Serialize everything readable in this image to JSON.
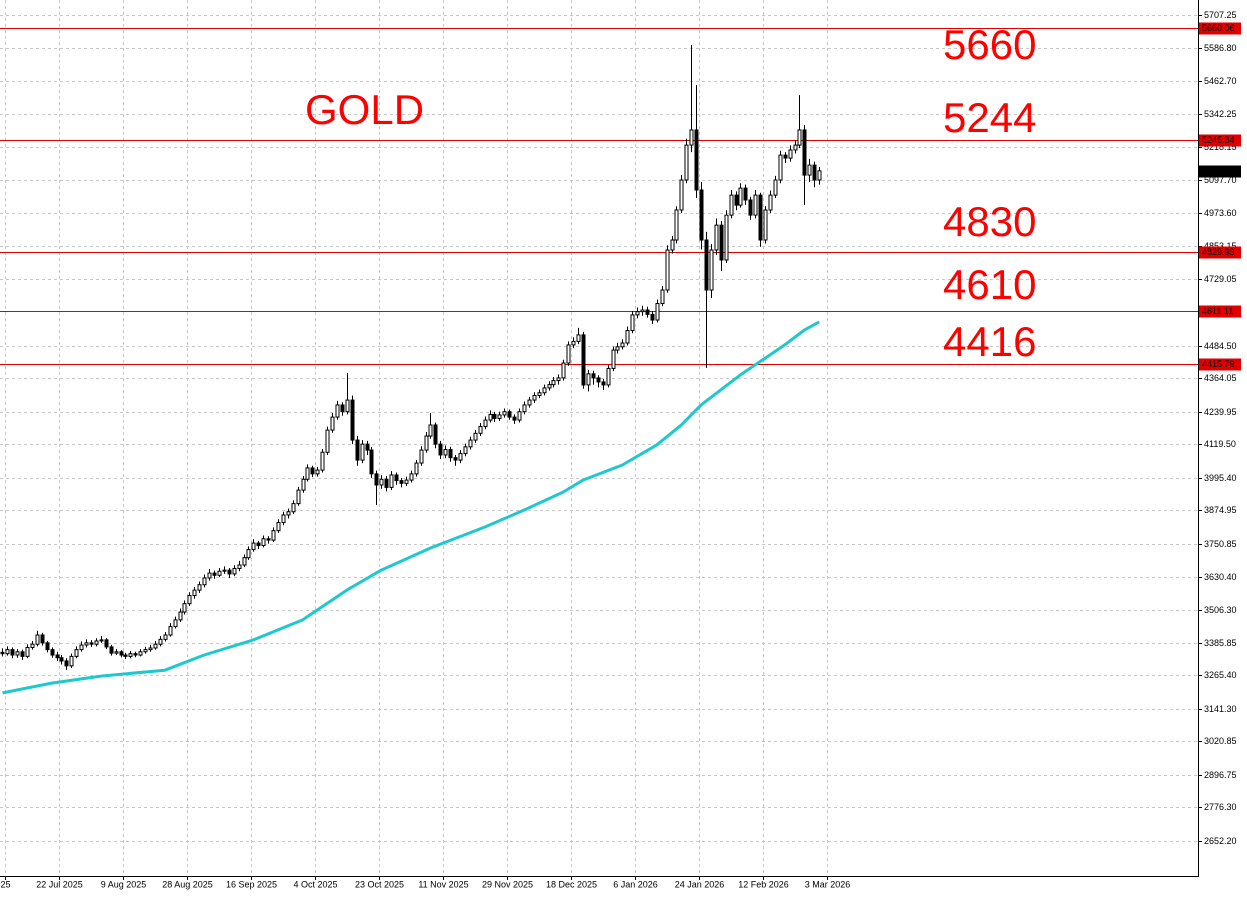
{
  "chart_data": {
    "type": "candlestick",
    "title": "GOLD",
    "annotations": [
      "5660",
      "5244",
      "4830",
      "4610",
      "4416"
    ],
    "xlim": [
      0,
      243.5
    ],
    "ylim": [
      2522.7,
      5762.7
    ],
    "grid": true,
    "up_color": "#ffffff",
    "down_color": "#000000",
    "annotation_color": "#ff0000",
    "xticks": [
      {
        "value": 1,
        "label": "25"
      },
      {
        "value": 12,
        "label": "22 Jul 2025"
      },
      {
        "value": 25,
        "label": "9 Aug 2025"
      },
      {
        "value": 38,
        "label": "28 Aug 2025"
      },
      {
        "value": 51,
        "label": "16 Sep 2025"
      },
      {
        "value": 64,
        "label": "4 Oct 2025"
      },
      {
        "value": 77,
        "label": "23 Oct 2025"
      },
      {
        "value": 90,
        "label": "11 Nov 2025"
      },
      {
        "value": 103,
        "label": "29 Nov 2025"
      },
      {
        "value": 116,
        "label": "18 Dec 2025"
      },
      {
        "value": 129,
        "label": "6 Jan 2026"
      },
      {
        "value": 142,
        "label": "24 Jan 2026"
      },
      {
        "value": 155,
        "label": "12 Feb 2026"
      },
      {
        "value": 168,
        "label": "3 Mar 2026"
      }
    ],
    "yticks": [
      {
        "value": 5707.25,
        "label": "5707.25"
      },
      {
        "value": 5586.8,
        "label": "5586.80"
      },
      {
        "value": 5462.7,
        "label": "5462.70"
      },
      {
        "value": 5342.25,
        "label": "5342.25"
      },
      {
        "value": 5218.15,
        "label": "5218.15"
      },
      {
        "value": 5097.7,
        "label": "5097.70"
      },
      {
        "value": 4973.6,
        "label": "4973.60"
      },
      {
        "value": 4853.15,
        "label": "4853.15"
      },
      {
        "value": 4729.05,
        "label": "4729.05"
      },
      {
        "value": 4484.5,
        "label": "4484.50"
      },
      {
        "value": 4364.05,
        "label": "4364.05"
      },
      {
        "value": 4239.95,
        "label": "4239.95"
      },
      {
        "value": 4119.5,
        "label": "4119.50"
      },
      {
        "value": 3995.4,
        "label": "3995.40"
      },
      {
        "value": 3874.95,
        "label": "3874.95"
      },
      {
        "value": 3750.85,
        "label": "3750.85"
      },
      {
        "value": 3630.4,
        "label": "3630.40"
      },
      {
        "value": 3506.3,
        "label": "3506.30"
      },
      {
        "value": 3385.85,
        "label": "3385.85"
      },
      {
        "value": 3265.4,
        "label": "3265.40"
      },
      {
        "value": 3141.3,
        "label": "3141.30"
      },
      {
        "value": 3020.85,
        "label": "3020.85"
      },
      {
        "value": 2896.75,
        "label": "2896.75"
      },
      {
        "value": 2776.3,
        "label": "2776.30"
      },
      {
        "value": 2652.2,
        "label": "2652.20"
      }
    ],
    "levels": {
      "color": "#e00000",
      "values": [
        5660.06,
        5245.84,
        4829.93,
        4611.11,
        4415.79
      ]
    },
    "ma": {
      "color": "#1ec8cc",
      "x": [
        0,
        10,
        20,
        33,
        41,
        51,
        61,
        70,
        77,
        87,
        98,
        106,
        114,
        118,
        126,
        133,
        138,
        142,
        150,
        159,
        163,
        166
      ],
      "values": [
        3200,
        3236,
        3262,
        3284,
        3340,
        3396,
        3470,
        3580,
        3654,
        3736,
        3813,
        3876,
        3943,
        3987,
        4043,
        4117,
        4191,
        4265,
        4376,
        4487,
        4542,
        4572
      ]
    },
    "ohlc": [
      [
        3350,
        3365,
        3335,
        3345
      ],
      [
        3345,
        3372,
        3338,
        3360
      ],
      [
        3360,
        3368,
        3328,
        3340
      ],
      [
        3340,
        3362,
        3330,
        3352
      ],
      [
        3352,
        3360,
        3322,
        3335
      ],
      [
        3335,
        3380,
        3328,
        3368
      ],
      [
        3368,
        3392,
        3360,
        3380
      ],
      [
        3380,
        3430,
        3372,
        3414
      ],
      [
        3414,
        3422,
        3375,
        3385
      ],
      [
        3385,
        3392,
        3350,
        3360
      ],
      [
        3360,
        3368,
        3330,
        3340
      ],
      [
        3340,
        3352,
        3318,
        3330
      ],
      [
        3330,
        3340,
        3305,
        3318
      ],
      [
        3318,
        3328,
        3285,
        3300
      ],
      [
        3300,
        3345,
        3292,
        3335
      ],
      [
        3335,
        3372,
        3328,
        3360
      ],
      [
        3360,
        3390,
        3352,
        3377
      ],
      [
        3377,
        3398,
        3368,
        3385
      ],
      [
        3385,
        3395,
        3370,
        3380
      ],
      [
        3380,
        3402,
        3372,
        3392
      ],
      [
        3392,
        3410,
        3385,
        3396
      ],
      [
        3396,
        3402,
        3362,
        3370
      ],
      [
        3370,
        3378,
        3338,
        3347
      ],
      [
        3347,
        3362,
        3340,
        3352
      ],
      [
        3352,
        3358,
        3332,
        3340
      ],
      [
        3340,
        3348,
        3325,
        3335
      ],
      [
        3335,
        3355,
        3328,
        3345
      ],
      [
        3345,
        3352,
        3332,
        3340
      ],
      [
        3340,
        3362,
        3335,
        3352
      ],
      [
        3352,
        3370,
        3345,
        3360
      ],
      [
        3360,
        3378,
        3352,
        3366
      ],
      [
        3366,
        3392,
        3360,
        3380
      ],
      [
        3380,
        3410,
        3372,
        3398
      ],
      [
        3398,
        3425,
        3390,
        3414
      ],
      [
        3414,
        3458,
        3408,
        3445
      ],
      [
        3445,
        3482,
        3438,
        3470
      ],
      [
        3470,
        3512,
        3462,
        3499
      ],
      [
        3499,
        3542,
        3490,
        3530
      ],
      [
        3530,
        3572,
        3522,
        3560
      ],
      [
        3560,
        3592,
        3548,
        3580
      ],
      [
        3580,
        3612,
        3570,
        3600
      ],
      [
        3600,
        3638,
        3590,
        3625
      ],
      [
        3625,
        3658,
        3615,
        3643
      ],
      [
        3643,
        3652,
        3622,
        3635
      ],
      [
        3635,
        3662,
        3628,
        3650
      ],
      [
        3650,
        3668,
        3640,
        3654
      ],
      [
        3654,
        3662,
        3625,
        3640
      ],
      [
        3640,
        3672,
        3632,
        3660
      ],
      [
        3660,
        3688,
        3650,
        3673
      ],
      [
        3673,
        3712,
        3665,
        3700
      ],
      [
        3700,
        3742,
        3692,
        3730
      ],
      [
        3730,
        3768,
        3722,
        3754
      ],
      [
        3754,
        3762,
        3732,
        3745
      ],
      [
        3745,
        3782,
        3738,
        3770
      ],
      [
        3770,
        3780,
        3752,
        3765
      ],
      [
        3765,
        3812,
        3758,
        3800
      ],
      [
        3800,
        3842,
        3792,
        3830
      ],
      [
        3830,
        3870,
        3820,
        3858
      ],
      [
        3858,
        3882,
        3845,
        3870
      ],
      [
        3870,
        3912,
        3862,
        3900
      ],
      [
        3900,
        3962,
        3892,
        3950
      ],
      [
        3950,
        4002,
        3940,
        3990
      ],
      [
        3990,
        4045,
        3982,
        4032
      ],
      [
        4032,
        4040,
        3998,
        4010
      ],
      [
        4010,
        4036,
        4000,
        4024
      ],
      [
        4024,
        4102,
        4015,
        4090
      ],
      [
        4090,
        4185,
        4080,
        4172
      ],
      [
        4172,
        4235,
        4162,
        4220
      ],
      [
        4220,
        4280,
        4210,
        4265
      ],
      [
        4265,
        4275,
        4225,
        4240
      ],
      [
        4240,
        4383,
        4230,
        4283
      ],
      [
        4283,
        4300,
        4120,
        4135
      ],
      [
        4135,
        4150,
        4040,
        4061
      ],
      [
        4061,
        4135,
        4050,
        4120
      ],
      [
        4120,
        4132,
        4080,
        4098
      ],
      [
        4098,
        4110,
        3995,
        4010
      ],
      [
        4010,
        4022,
        3895,
        3969
      ],
      [
        3969,
        4005,
        3955,
        3990
      ],
      [
        3990,
        4002,
        3945,
        3960
      ],
      [
        3960,
        4020,
        3950,
        4006
      ],
      [
        4006,
        4015,
        3970,
        3985
      ],
      [
        3985,
        3995,
        3960,
        3975
      ],
      [
        3975,
        4000,
        3965,
        3987
      ],
      [
        3987,
        4022,
        3978,
        4010
      ],
      [
        4010,
        4062,
        4000,
        4050
      ],
      [
        4050,
        4112,
        4040,
        4098
      ],
      [
        4098,
        4165,
        4088,
        4150
      ],
      [
        4150,
        4235,
        4140,
        4191
      ],
      [
        4191,
        4200,
        4105,
        4120
      ],
      [
        4120,
        4132,
        4065,
        4080
      ],
      [
        4080,
        4115,
        4068,
        4100
      ],
      [
        4100,
        4110,
        4055,
        4070
      ],
      [
        4070,
        4080,
        4040,
        4061
      ],
      [
        4061,
        4098,
        4050,
        4085
      ],
      [
        4085,
        4122,
        4075,
        4110
      ],
      [
        4110,
        4148,
        4100,
        4135
      ],
      [
        4135,
        4172,
        4125,
        4160
      ],
      [
        4160,
        4198,
        4150,
        4185
      ],
      [
        4185,
        4222,
        4175,
        4209
      ],
      [
        4209,
        4245,
        4200,
        4230
      ],
      [
        4230,
        4240,
        4202,
        4215
      ],
      [
        4215,
        4240,
        4205,
        4228
      ],
      [
        4228,
        4252,
        4218,
        4240
      ],
      [
        4240,
        4248,
        4210,
        4220
      ],
      [
        4220,
        4230,
        4195,
        4209
      ],
      [
        4209,
        4252,
        4200,
        4240
      ],
      [
        4240,
        4278,
        4230,
        4265
      ],
      [
        4265,
        4295,
        4255,
        4283
      ],
      [
        4283,
        4312,
        4272,
        4300
      ],
      [
        4300,
        4322,
        4290,
        4310
      ],
      [
        4310,
        4340,
        4300,
        4328
      ],
      [
        4328,
        4352,
        4318,
        4340
      ],
      [
        4340,
        4368,
        4330,
        4355
      ],
      [
        4355,
        4378,
        4340,
        4365
      ],
      [
        4365,
        4432,
        4355,
        4420
      ],
      [
        4420,
        4500,
        4410,
        4487
      ],
      [
        4487,
        4515,
        4475,
        4500
      ],
      [
        4500,
        4550,
        4490,
        4524
      ],
      [
        4524,
        4535,
        4325,
        4339
      ],
      [
        4339,
        4395,
        4315,
        4380
      ],
      [
        4380,
        4392,
        4340,
        4365
      ],
      [
        4365,
        4375,
        4330,
        4350
      ],
      [
        4350,
        4362,
        4320,
        4339
      ],
      [
        4339,
        4412,
        4330,
        4400
      ],
      [
        4400,
        4480,
        4390,
        4468
      ],
      [
        4468,
        4495,
        4455,
        4480
      ],
      [
        4480,
        4508,
        4470,
        4494
      ],
      [
        4494,
        4555,
        4485,
        4540
      ],
      [
        4540,
        4612,
        4530,
        4598
      ],
      [
        4598,
        4625,
        4585,
        4610
      ],
      [
        4610,
        4632,
        4595,
        4616
      ],
      [
        4616,
        4628,
        4588,
        4600
      ],
      [
        4600,
        4612,
        4565,
        4579
      ],
      [
        4579,
        4655,
        4570,
        4640
      ],
      [
        4640,
        4705,
        4630,
        4690
      ],
      [
        4690,
        4855,
        4680,
        4838
      ],
      [
        4838,
        4890,
        4825,
        4875
      ],
      [
        4875,
        5000,
        4862,
        4986
      ],
      [
        4986,
        5115,
        4975,
        5097
      ],
      [
        5097,
        5250,
        5085,
        5226
      ],
      [
        5226,
        5596,
        5200,
        5282
      ],
      [
        5282,
        5448,
        5030,
        5060
      ],
      [
        5060,
        5090,
        4840,
        4875
      ],
      [
        4875,
        4905,
        4402,
        4690
      ],
      [
        4690,
        4860,
        4660,
        4838
      ],
      [
        4838,
        4955,
        4820,
        4930
      ],
      [
        4930,
        4945,
        4760,
        4801
      ],
      [
        4801,
        4985,
        4790,
        4967
      ],
      [
        4967,
        5060,
        4955,
        5041
      ],
      [
        5041,
        5055,
        4985,
        5004
      ],
      [
        5004,
        5085,
        4995,
        5067
      ],
      [
        5067,
        5080,
        5005,
        5023
      ],
      [
        5023,
        5035,
        4950,
        4967
      ],
      [
        4967,
        5060,
        4955,
        5041
      ],
      [
        5041,
        5050,
        4850,
        4875
      ],
      [
        4875,
        5000,
        4862,
        4986
      ],
      [
        4986,
        5058,
        4975,
        5041
      ],
      [
        5041,
        5112,
        5030,
        5097
      ],
      [
        5097,
        5205,
        5085,
        5189
      ],
      [
        5189,
        5200,
        5160,
        5178
      ],
      [
        5178,
        5225,
        5165,
        5208
      ],
      [
        5208,
        5245,
        5195,
        5226
      ],
      [
        5226,
        5411,
        5215,
        5282
      ],
      [
        5282,
        5300,
        5005,
        5115
      ],
      [
        5115,
        5175,
        5090,
        5152
      ],
      [
        5152,
        5165,
        5070,
        5097
      ],
      [
        5097,
        5145,
        5080,
        5130.88
      ]
    ]
  }
}
